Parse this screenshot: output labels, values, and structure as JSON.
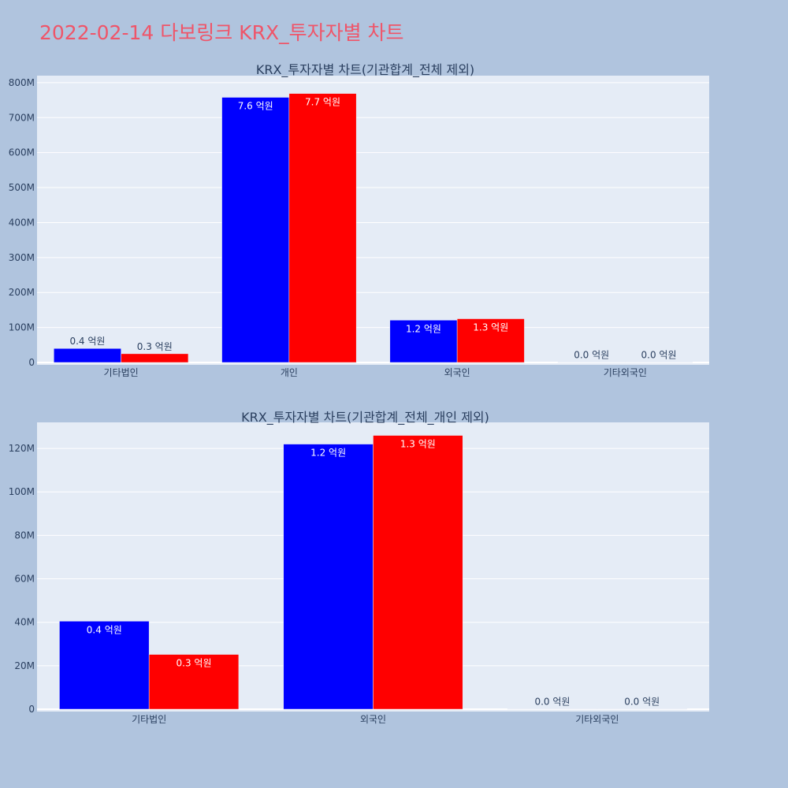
{
  "page": {
    "title": "2022-02-14 다보링크 KRX_투자자별 차트"
  },
  "colors": {
    "background": "#b0c4de",
    "plot_bg": "#e5ecf6",
    "title": "#ef5569",
    "series_a": "#0000ff",
    "series_b": "#ff0000"
  },
  "chart_data": [
    {
      "type": "bar",
      "title": "KRX_투자자별 차트(기관합계_전체 제외)",
      "categories": [
        "기타법인",
        "개인",
        "외국인",
        "기타외국인"
      ],
      "series": [
        {
          "values": [
            40000000,
            758000000,
            121000000,
            0
          ],
          "labels": [
            "0.4 억원",
            "7.6 억원",
            "1.2 억원",
            "0.0 억원"
          ],
          "color": "#0000ff"
        },
        {
          "values": [
            25000000,
            769000000,
            125000000,
            0
          ],
          "labels": [
            "0.3 억원",
            "7.7 억원",
            "1.3 억원",
            "0.0 억원"
          ],
          "color": "#ff0000"
        }
      ],
      "ylim": [
        0,
        820000000
      ],
      "yticks": [
        0,
        100000000,
        200000000,
        300000000,
        400000000,
        500000000,
        600000000,
        700000000,
        800000000
      ],
      "ytick_labels": [
        "0",
        "100M",
        "200M",
        "300M",
        "400M",
        "500M",
        "600M",
        "700M",
        "800M"
      ],
      "grid": true
    },
    {
      "type": "bar",
      "title": "KRX_투자자별 차트(기관합계_전체_개인 제외)",
      "categories": [
        "기타법인",
        "외국인",
        "기타외국인"
      ],
      "series": [
        {
          "values": [
            40500000,
            122000000,
            0
          ],
          "labels": [
            "0.4 억원",
            "1.2 억원",
            "0.0 억원"
          ],
          "color": "#0000ff"
        },
        {
          "values": [
            25200000,
            126000000,
            0
          ],
          "labels": [
            "0.3 억원",
            "1.3 억원",
            "0.0 억원"
          ],
          "color": "#ff0000"
        }
      ],
      "ylim": [
        0,
        132000000
      ],
      "yticks": [
        0,
        20000000,
        40000000,
        60000000,
        80000000,
        100000000,
        120000000
      ],
      "ytick_labels": [
        "0",
        "20M",
        "40M",
        "60M",
        "80M",
        "100M",
        "120M"
      ],
      "grid": true
    }
  ]
}
